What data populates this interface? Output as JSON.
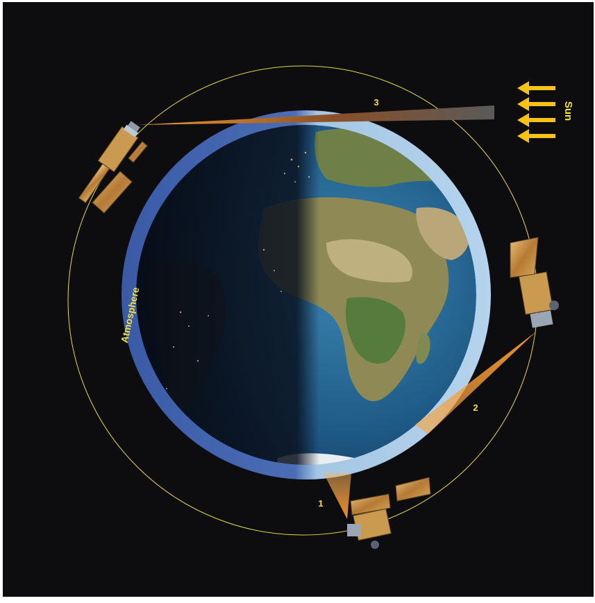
{
  "labels": {
    "atmosphere": "Atmosphere",
    "sun": "Sun",
    "view_1": "1",
    "view_2": "2",
    "view_3": "3"
  },
  "colors": {
    "background": "#0d0d0f",
    "orbit": "#e8dc3a",
    "label": "#f2e23a",
    "sun_arrow": "#f6c21a",
    "atmosphere_night": "#3f60aa",
    "atmosphere_day": "#a9cbe6",
    "beam": "#f0902a",
    "ocean": "#2a5f86",
    "land": "#8a8a4a"
  }
}
